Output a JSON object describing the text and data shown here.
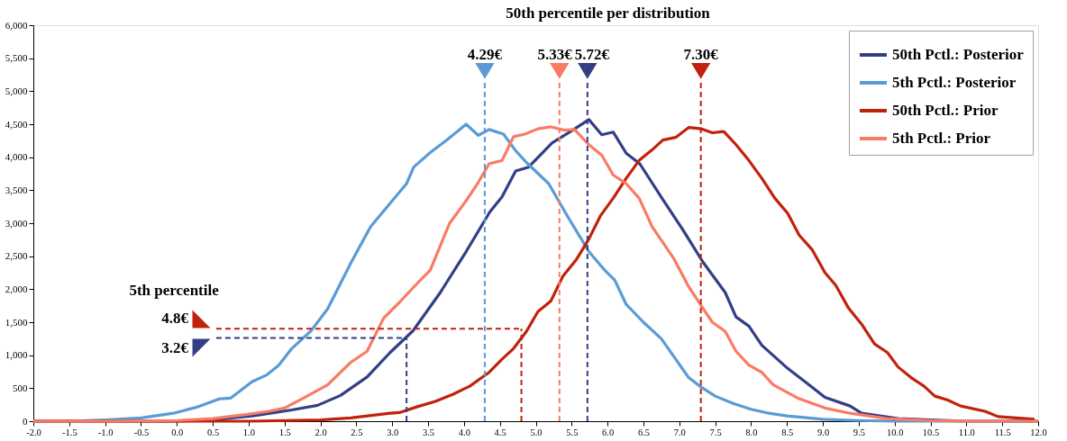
{
  "chart_data": {
    "type": "line",
    "title": "50th percentile per distribution",
    "xlim": [
      -2,
      12
    ],
    "xticks": [
      {
        "value": -2,
        "label": "-2.0"
      },
      {
        "value": -1.5,
        "label": "-1.5"
      },
      {
        "value": -1,
        "label": "-1.0"
      },
      {
        "value": -0.5,
        "label": "-0.5"
      },
      {
        "value": 0,
        "label": "0.0"
      },
      {
        "value": 0.5,
        "label": "0.5"
      },
      {
        "value": 1,
        "label": "1.0"
      },
      {
        "value": 1.5,
        "label": "1.5"
      },
      {
        "value": 2,
        "label": "2.0"
      },
      {
        "value": 2.5,
        "label": "2.5"
      },
      {
        "value": 3,
        "label": "3.0"
      },
      {
        "value": 3.5,
        "label": "3.5"
      },
      {
        "value": 4,
        "label": "4.0"
      },
      {
        "value": 4.5,
        "label": "4.5"
      },
      {
        "value": 5,
        "label": "5.0"
      },
      {
        "value": 5.5,
        "label": "5.5"
      },
      {
        "value": 6,
        "label": "6.0"
      },
      {
        "value": 6.5,
        "label": "6.5"
      },
      {
        "value": 7,
        "label": "7.0"
      },
      {
        "value": 7.5,
        "label": "7.5"
      },
      {
        "value": 8,
        "label": "8.0"
      },
      {
        "value": 8.5,
        "label": "8.5"
      },
      {
        "value": 9,
        "label": "9.0"
      },
      {
        "value": 9.5,
        "label": "9.5"
      },
      {
        "value": 10,
        "label": "10.0"
      },
      {
        "value": 10.5,
        "label": "10.5"
      },
      {
        "value": 11,
        "label": "11.0"
      },
      {
        "value": 11.5,
        "label": "11.5"
      },
      {
        "value": 12,
        "label": "12.0"
      }
    ],
    "ylim": [
      0,
      6000
    ],
    "yticks": [
      0,
      500,
      {
        "value": 1000,
        "label": "1,000"
      },
      {
        "value": 1500,
        "label": "1,500"
      },
      {
        "value": 2000,
        "label": "2,000"
      },
      {
        "value": 2500,
        "label": "2,500"
      },
      {
        "value": 3000,
        "label": "3,000"
      },
      {
        "value": 3500,
        "label": "3,500"
      },
      {
        "value": 4000,
        "label": "4,000"
      },
      {
        "value": 4500,
        "label": "4,500"
      },
      {
        "value": 5000,
        "label": "5,000"
      },
      {
        "value": 5500,
        "label": "5,500"
      },
      {
        "value": 6000,
        "label": "6,000"
      }
    ],
    "grid": false,
    "legend": "top right",
    "marker": "none",
    "line_style": "solid",
    "series": [
      {
        "name": "50th Pctl.: Posterior",
        "color": "#323f86",
        "x": [
          -2,
          -1,
          0,
          0.5,
          1.05,
          1.3,
          1.6,
          1.96,
          2.28,
          2.65,
          2.97,
          3.29,
          3.67,
          4.03,
          4.36,
          4.53,
          4.72,
          4.9,
          5.23,
          5.5,
          5.74,
          5.92,
          6.08,
          6.26,
          6.45,
          6.77,
          7.05,
          7.33,
          7.64,
          7.79,
          7.97,
          8.15,
          8.51,
          8.75,
          9.03,
          9.38,
          9.54,
          10.05,
          10.5,
          11,
          12
        ],
        "values": [
          0,
          0,
          0,
          20,
          80,
          120,
          170,
          240,
          390,
          670,
          1040,
          1370,
          1950,
          2570,
          3170,
          3400,
          3790,
          3850,
          4220,
          4400,
          4570,
          4340,
          4380,
          4060,
          3900,
          3360,
          2900,
          2410,
          1950,
          1580,
          1440,
          1150,
          800,
          600,
          360,
          230,
          120,
          40,
          20,
          0,
          0
        ]
      },
      {
        "name": "5th Pctl.: Posterior",
        "color": "#5b9bd5",
        "x": [
          -2,
          -1.5,
          -1,
          -0.5,
          -0.05,
          0.3,
          0.6,
          0.75,
          1.05,
          1.25,
          1.42,
          1.6,
          1.87,
          2.1,
          2.42,
          2.7,
          2.97,
          3.2,
          3.3,
          3.53,
          3.75,
          4.03,
          4.2,
          4.35,
          4.55,
          4.72,
          4.87,
          5.18,
          5.44,
          5.74,
          5.95,
          6.1,
          6.26,
          6.5,
          6.75,
          7.13,
          7.3,
          7.5,
          7.75,
          8.0,
          8.25,
          8.5,
          9.0,
          9.5,
          10,
          11,
          12
        ],
        "values": [
          0,
          0,
          20,
          50,
          120,
          220,
          340,
          350,
          600,
          700,
          850,
          1100,
          1370,
          1700,
          2390,
          2950,
          3300,
          3600,
          3850,
          4070,
          4250,
          4500,
          4330,
          4420,
          4350,
          4100,
          3920,
          3600,
          3110,
          2570,
          2300,
          2140,
          1770,
          1500,
          1250,
          660,
          520,
          380,
          270,
          180,
          120,
          80,
          30,
          10,
          0,
          0,
          0
        ]
      },
      {
        "name": "50th Pctl.: Prior",
        "color": "#c0220c",
        "x": [
          -2,
          0,
          1,
          2,
          2.42,
          2.97,
          3.1,
          3.35,
          3.6,
          3.85,
          4.08,
          4.35,
          4.53,
          4.69,
          4.87,
          5.03,
          5.21,
          5.38,
          5.56,
          5.74,
          5.9,
          6.08,
          6.26,
          6.44,
          6.62,
          6.77,
          6.95,
          7.13,
          7.31,
          7.46,
          7.62,
          7.79,
          7.97,
          8.15,
          8.33,
          8.51,
          8.67,
          8.85,
          9.03,
          9.18,
          9.36,
          9.54,
          9.72,
          9.9,
          10.05,
          10.23,
          10.41,
          10.56,
          10.74,
          10.92,
          11.26,
          11.44,
          11.95
        ],
        "values": [
          0,
          0,
          0,
          20,
          50,
          120,
          130,
          220,
          300,
          410,
          530,
          740,
          940,
          1100,
          1360,
          1660,
          1820,
          2200,
          2440,
          2760,
          3110,
          3380,
          3680,
          3950,
          4110,
          4260,
          4300,
          4450,
          4430,
          4370,
          4390,
          4190,
          3950,
          3680,
          3380,
          3150,
          2820,
          2600,
          2250,
          2060,
          1710,
          1470,
          1170,
          1040,
          820,
          660,
          530,
          380,
          320,
          230,
          150,
          70,
          30
        ]
      },
      {
        "name": "5th Pctl.: Prior",
        "color": "#fa7b64",
        "x": [
          -2,
          -1,
          0,
          0.5,
          0.96,
          1.28,
          1.5,
          1.78,
          2.1,
          2.42,
          2.65,
          2.88,
          3.1,
          3.35,
          3.53,
          3.8,
          4.03,
          4.2,
          4.35,
          4.53,
          4.69,
          4.85,
          5.03,
          5.21,
          5.4,
          5.54,
          5.74,
          5.92,
          6.08,
          6.26,
          6.44,
          6.62,
          6.92,
          7.13,
          7.33,
          7.46,
          7.64,
          7.79,
          7.97,
          8.15,
          8.31,
          8.67,
          9.03,
          9.38,
          9.9,
          10.5,
          11,
          12
        ],
        "values": [
          0,
          0,
          10,
          40,
          100,
          150,
          200,
          360,
          550,
          890,
          1060,
          1560,
          1800,
          2090,
          2290,
          3000,
          3340,
          3620,
          3900,
          3950,
          4310,
          4350,
          4430,
          4460,
          4410,
          4420,
          4190,
          4030,
          3730,
          3600,
          3380,
          2950,
          2470,
          2040,
          1710,
          1500,
          1360,
          1060,
          850,
          740,
          550,
          340,
          200,
          120,
          40,
          10,
          0,
          0
        ]
      }
    ],
    "ref_lines": [
      {
        "axis": "x",
        "value": 4.29,
        "label": "4.29€",
        "color": "#5b9bd5",
        "line_style": "dashed"
      },
      {
        "axis": "x",
        "value": 5.33,
        "label": "5.33€",
        "color": "#fa7b64",
        "line_style": "dashed"
      },
      {
        "axis": "x",
        "value": 5.72,
        "label": "5.72€",
        "color": "#323f86",
        "line_style": "dashed"
      },
      {
        "axis": "x",
        "value": 7.3,
        "label": "7.30€",
        "color": "#c0220c",
        "line_style": "dashed"
      },
      {
        "axis": "y",
        "value": 1400,
        "label": "4.8€",
        "color": "#c0220c",
        "line_style": "dashed"
      },
      {
        "axis": "y",
        "value": 1260,
        "label": "3.2€",
        "color": "#323f86",
        "line_style": "dashed"
      },
      {
        "axis": "x",
        "value": 4.8,
        "label": null,
        "color": "#c0220c",
        "line_style": "dashed"
      },
      {
        "axis": "x",
        "value": 3.2,
        "label": null,
        "color": "#323f86",
        "line_style": "dashed"
      }
    ],
    "annotations": [
      "5th percentile"
    ]
  }
}
